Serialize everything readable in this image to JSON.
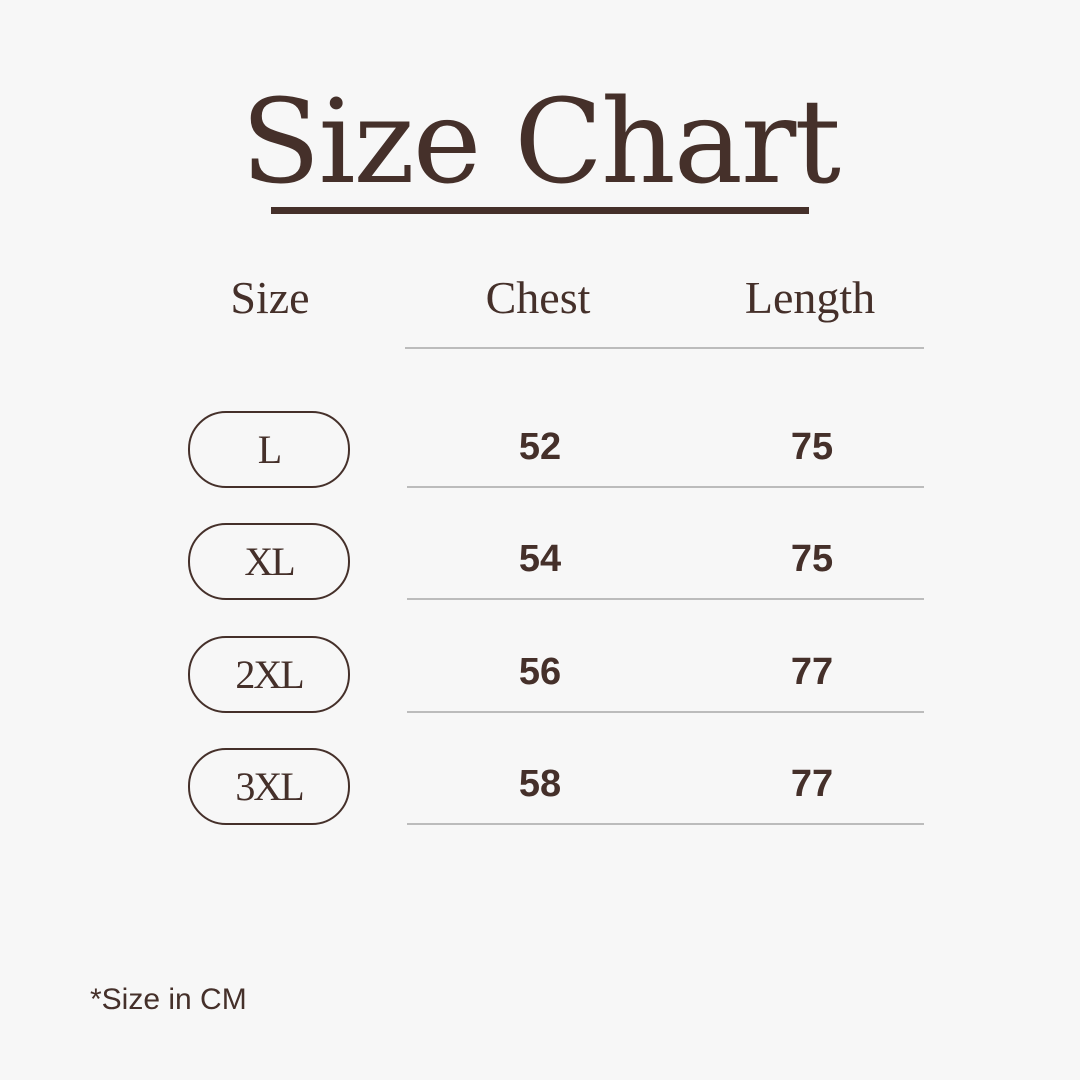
{
  "title": "Size Chart",
  "headers": [
    "Size",
    "Chest",
    "Length"
  ],
  "rows": [
    {
      "size": "L",
      "chest": "52",
      "length": "75"
    },
    {
      "size": "XL",
      "chest": "54",
      "length": "75"
    },
    {
      "size": "2XL",
      "chest": "56",
      "length": "77"
    },
    {
      "size": "3XL",
      "chest": "58",
      "length": "77"
    }
  ],
  "footnote": "*Size in CM",
  "colors": {
    "text": "#45302a",
    "background": "#f7f7f7",
    "divider": "#bcbcbc"
  }
}
